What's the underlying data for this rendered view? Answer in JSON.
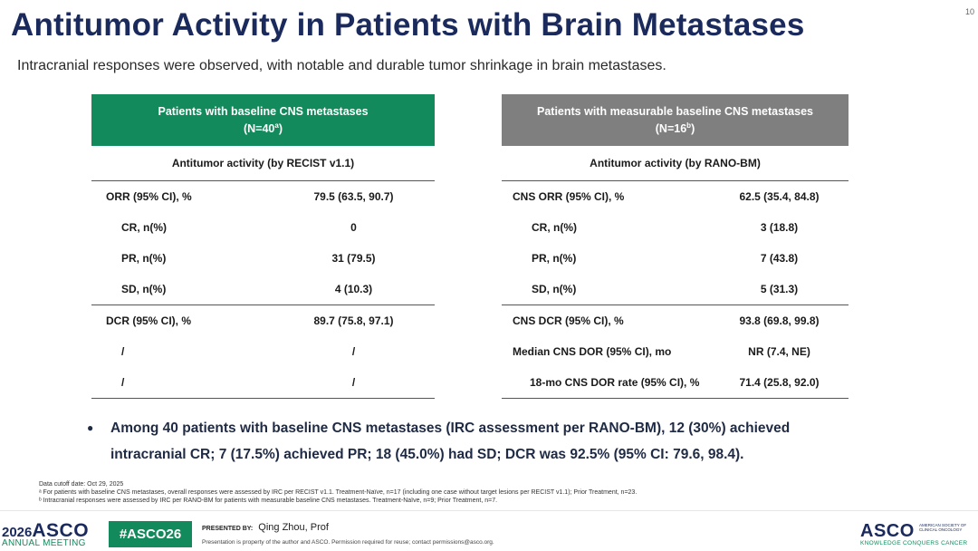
{
  "page_number": "10",
  "title": "Antitumor Activity in Patients with Brain Metastases",
  "subtitle": "Intracranial responses were observed, with notable and durable tumor shrinkage in brain metastases.",
  "left_panel": {
    "header_line1": "Patients with baseline CNS metastases",
    "header_line2_prefix": "(N=40",
    "header_line2_sup": "a",
    "header_line2_suffix": ")",
    "activity_title": "Antitumor activity (by RECIST v1.1)",
    "rows": [
      {
        "label": "ORR (95% CI), %",
        "value": "79.5 (63.5, 90.7)"
      },
      {
        "label": "CR, n(%)",
        "value": "0"
      },
      {
        "label": "PR, n(%)",
        "value": "31 (79.5)"
      },
      {
        "label": "SD, n(%)",
        "value": "4 (10.3)"
      },
      {
        "label": "DCR (95% CI), %",
        "value": "89.7 (75.8, 97.1)"
      },
      {
        "label": "/",
        "value": "/"
      },
      {
        "label": "/",
        "value": "/"
      }
    ]
  },
  "right_panel": {
    "header_line1": "Patients with measurable baseline CNS metastases",
    "header_line2_prefix": "(N=16",
    "header_line2_sup": "b",
    "header_line2_suffix": ")",
    "activity_title": "Antitumor activity (by RANO-BM)",
    "rows": [
      {
        "label": "CNS ORR (95% CI), %",
        "value": "62.5 (35.4, 84.8)"
      },
      {
        "label": "CR, n(%)",
        "value": "3 (18.8)"
      },
      {
        "label": "PR, n(%)",
        "value": "7 (43.8)"
      },
      {
        "label": "SD, n(%)",
        "value": "5 (31.3)"
      },
      {
        "label": "CNS DCR (95% CI), %",
        "value": "93.8  (69.8, 99.8)"
      },
      {
        "label": "Median CNS DOR (95% CI), mo",
        "value": "NR (7.4, NE)"
      },
      {
        "label": "18-mo CNS DOR rate (95% CI), %",
        "value": "71.4 (25.8, 92.0)"
      }
    ]
  },
  "bullet": {
    "marker": "●",
    "line1": "Among 40 patients with baseline CNS metastases (IRC assessment per RANO-BM), 12 (30%) achieved",
    "line2": "intracranial CR; 7 (17.5%) achieved PR; 18 (45.0%) had SD; DCR was 92.5% (95% CI: 79.6, 98.4)."
  },
  "footnotes": {
    "cutoff": "Data cutoff date: Oct 29, 2025",
    "note_a": "ᵃ For patients with baseline CNS metastases, overall responses were assessed by IRC per RECIST v1.1. Treatment-Naïve, n=17 (including one case without target lesions per RECIST v1.1); Prior Treatment, n=23.",
    "note_b": "ᵇ Intracranial responses were assessed by IRC per RANO-BM for patients with measurable baseline CNS metastases. Treatment-Naïve, n=9; Prior Treatment, n=7."
  },
  "footer": {
    "year": "2026",
    "asco": "ASCO",
    "annual_meeting": "ANNUAL MEETING",
    "hashtag": "#ASCO26",
    "presented_by_label": "PRESENTED BY:",
    "presenter": "Qing Zhou, Prof",
    "property_notice": "Presentation is property of the author and ASCO. Permission required for reuse; contact permissions@asco.org.",
    "asco_right": "ASCO",
    "asco_right_small": "AMERICAN SOCIETY OF CLINICAL ONCOLOGY",
    "tagline": "KNOWLEDGE CONQUERS CANCER"
  },
  "colors": {
    "title_navy": "#1b2a5c",
    "left_header_green": "#138a5c",
    "right_header_gray": "#7f7f7f"
  }
}
